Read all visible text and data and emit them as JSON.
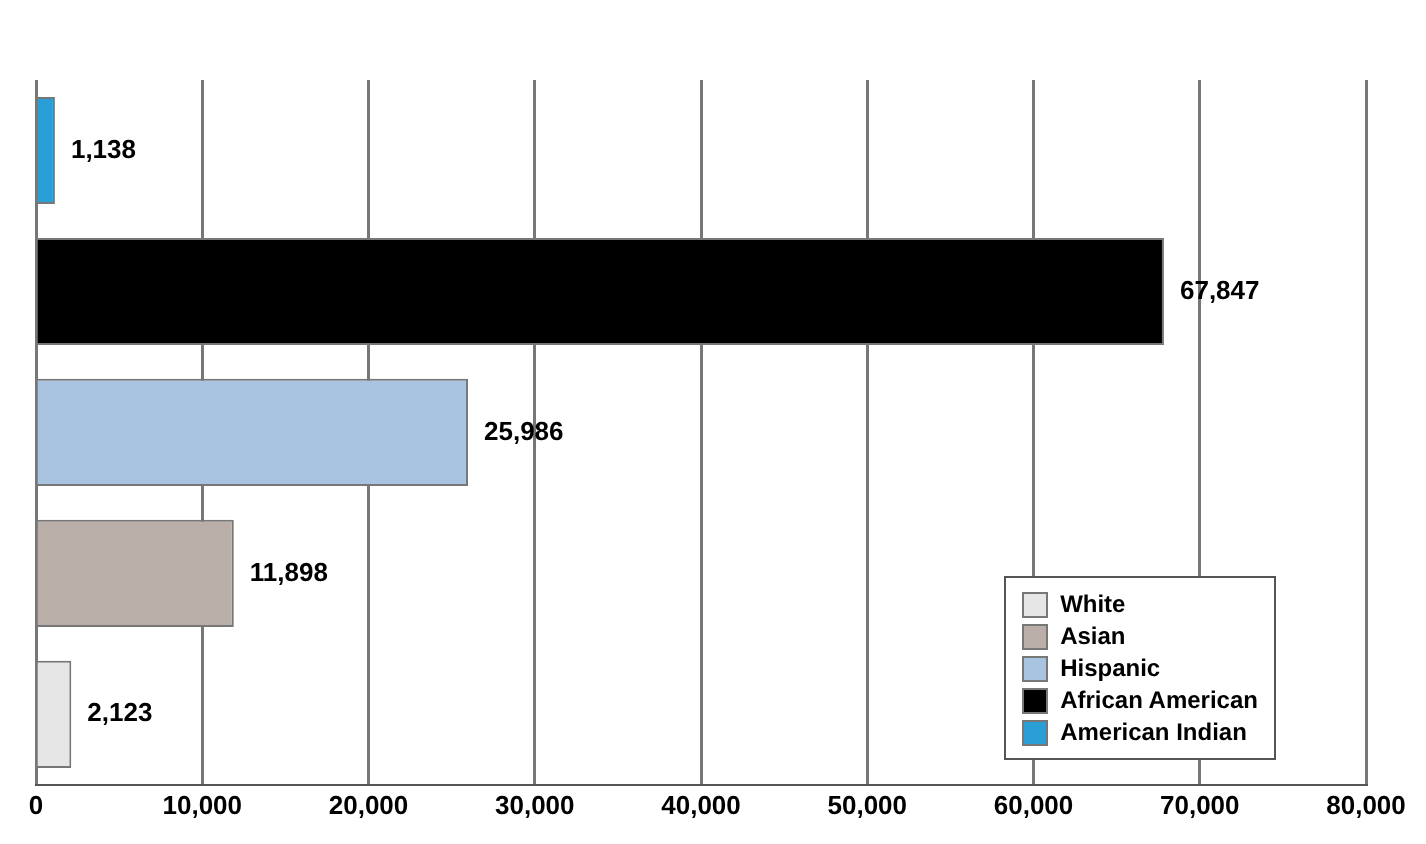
{
  "chart_data": {
    "type": "bar",
    "orientation": "horizontal",
    "categories": [
      null,
      null,
      null,
      null,
      null
    ],
    "series": [
      {
        "name": "White",
        "color": "#e6e6e6",
        "values": [
          null,
          null,
          null,
          null,
          2123
        ],
        "value_labels": [
          null,
          null,
          null,
          null,
          "2,123"
        ]
      },
      {
        "name": "Asian",
        "color": "#b9aea8",
        "values": [
          null,
          null,
          null,
          11898,
          null
        ],
        "value_labels": [
          null,
          null,
          null,
          "11,898",
          null
        ]
      },
      {
        "name": "Hispanic",
        "color": "#a9c4e0",
        "values": [
          null,
          null,
          25986,
          null,
          null
        ],
        "value_labels": [
          null,
          null,
          "25,986",
          null,
          null
        ]
      },
      {
        "name": "African American",
        "color": "#000000",
        "values": [
          null,
          67847,
          null,
          null,
          null
        ],
        "value_labels": [
          null,
          "67,847",
          null,
          null,
          null
        ]
      },
      {
        "name": "American Indian",
        "color": "#2a9fd6",
        "values": [
          1138,
          null,
          null,
          null,
          null
        ],
        "value_labels": [
          "1,138",
          null,
          null,
          null,
          null
        ]
      }
    ],
    "xlim": [
      0,
      80000
    ],
    "xticks": [
      {
        "value": 0,
        "label": "0"
      },
      {
        "value": 10000,
        "label": "10,000"
      },
      {
        "value": 20000,
        "label": "20,000"
      },
      {
        "value": 30000,
        "label": "30,000"
      },
      {
        "value": 40000,
        "label": "40,000"
      },
      {
        "value": 50000,
        "label": "50,000"
      },
      {
        "value": 60000,
        "label": "60,000"
      },
      {
        "value": 70000,
        "label": "70,000"
      },
      {
        "value": 80000,
        "label": "80,000"
      }
    ],
    "grid": "x",
    "legend": "bottom right",
    "tick_labels": "x"
  }
}
